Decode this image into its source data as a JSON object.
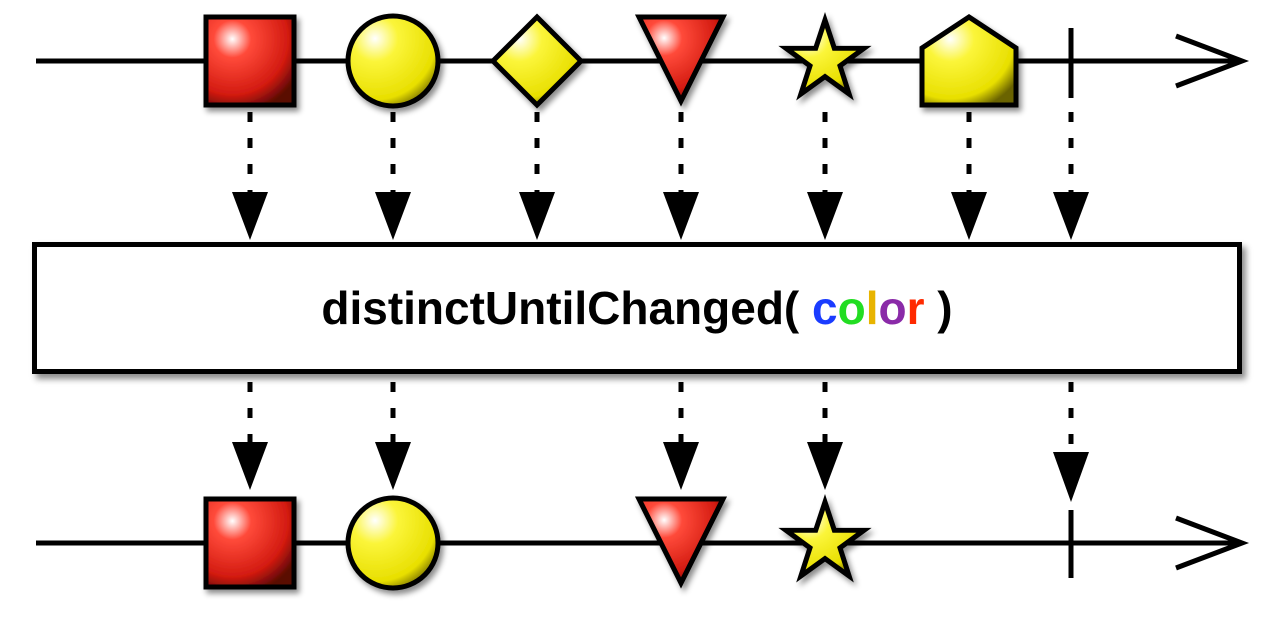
{
  "operator": {
    "prefix": "distinctUntilChanged( ",
    "arg_letters": [
      "c",
      "o",
      "l",
      "o",
      "r"
    ],
    "suffix": " )",
    "arg_colors": [
      "#1a3cff",
      "#22dd22",
      "#e8b400",
      "#8a2aa8",
      "#ff2a00"
    ]
  },
  "colors": {
    "red": "#e8241c",
    "yellow": "#f6f01e",
    "line": "#000000"
  },
  "input_items": [
    {
      "shape": "square",
      "color": "red"
    },
    {
      "shape": "circle",
      "color": "yellow"
    },
    {
      "shape": "diamond",
      "color": "yellow"
    },
    {
      "shape": "triangle-down",
      "color": "red"
    },
    {
      "shape": "star",
      "color": "yellow"
    },
    {
      "shape": "pentagon",
      "color": "yellow"
    },
    {
      "shape": "completion",
      "color": "line"
    }
  ],
  "output_items": [
    {
      "shape": "square",
      "color": "red"
    },
    {
      "shape": "circle",
      "color": "yellow"
    },
    {
      "shape": "triangle-down",
      "color": "red"
    },
    {
      "shape": "star",
      "color": "yellow"
    },
    {
      "shape": "completion",
      "color": "line"
    }
  ]
}
